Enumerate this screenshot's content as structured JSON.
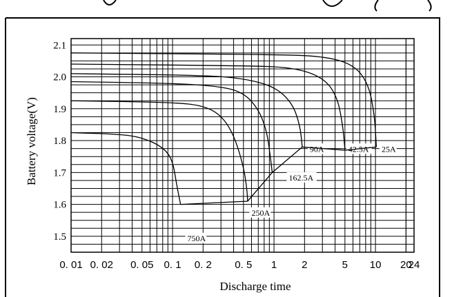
{
  "chart_data": {
    "type": "line",
    "title": "",
    "xlabel": "Discharge time",
    "ylabel": "Battery voltage(V)",
    "x_scale": "log",
    "x_ticks": [
      0.01,
      0.02,
      0.05,
      0.1,
      0.2,
      0.5,
      1,
      2,
      5,
      10,
      20,
      24
    ],
    "x_tick_labels": [
      "0. 01",
      "0. 02",
      "0. 05",
      "0. 1",
      "0. 2",
      "0. 5",
      "1",
      "2",
      "5",
      "10",
      "20",
      "24"
    ],
    "xlim": [
      0.01,
      24
    ],
    "ylim": [
      1.45,
      2.12
    ],
    "y_ticks": [
      1.5,
      1.6,
      1.7,
      1.8,
      1.9,
      2.0,
      2.1
    ],
    "y_tick_labels": [
      "1.5",
      "1.6",
      "1.7",
      "1.8",
      "1.9",
      "2.0",
      "2.1"
    ],
    "grid": true,
    "series": [
      {
        "name": "750A",
        "x": [
          0.01,
          0.03,
          0.05,
          0.08,
          0.1,
          0.11,
          0.12
        ],
        "y": [
          1.825,
          1.82,
          1.81,
          1.78,
          1.74,
          1.66,
          1.6
        ]
      },
      {
        "name": "250A",
        "x": [
          0.01,
          0.1,
          0.2,
          0.3,
          0.4,
          0.5,
          0.54,
          0.55
        ],
        "y": [
          1.925,
          1.92,
          1.91,
          1.88,
          1.82,
          1.72,
          1.65,
          1.61
        ]
      },
      {
        "name": "162.5A",
        "x": [
          0.01,
          0.1,
          0.3,
          0.5,
          0.7,
          0.85,
          0.92,
          0.96
        ],
        "y": [
          1.985,
          1.98,
          1.97,
          1.95,
          1.9,
          1.83,
          1.75,
          1.7
        ]
      },
      {
        "name": "90A",
        "x": [
          0.01,
          0.2,
          0.5,
          1.0,
          1.5,
          1.8,
          1.9
        ],
        "y": [
          2.01,
          2.005,
          1.995,
          1.97,
          1.92,
          1.85,
          1.78
        ]
      },
      {
        "name": "42.5A",
        "x": [
          0.01,
          0.5,
          1.5,
          3.0,
          4.2,
          4.8,
          5.0
        ],
        "y": [
          2.04,
          2.035,
          2.03,
          2.0,
          1.94,
          1.84,
          1.77
        ]
      },
      {
        "name": "25A",
        "x": [
          0.01,
          1.0,
          3.0,
          6.0,
          8.5,
          9.8,
          10.2
        ],
        "y": [
          2.075,
          2.07,
          2.065,
          2.04,
          1.98,
          1.88,
          1.78
        ]
      }
    ],
    "min_voltage_line": {
      "x": [
        0.12,
        0.55,
        0.96,
        1.9,
        5.0,
        10.2
      ],
      "y": [
        1.6,
        1.61,
        1.7,
        1.78,
        1.77,
        1.78
      ]
    },
    "curve_labels": [
      {
        "text": "750A",
        "x": 0.14,
        "y": 1.485
      },
      {
        "text": "250A",
        "x": 0.6,
        "y": 1.565
      },
      {
        "text": "162.5A",
        "x": 1.4,
        "y": 1.675
      },
      {
        "text": "90A",
        "x": 2.25,
        "y": 1.765
      },
      {
        "text": "42.5A",
        "x": 5.4,
        "y": 1.765
      },
      {
        "text": "25A",
        "x": 11.5,
        "y": 1.765
      }
    ]
  }
}
